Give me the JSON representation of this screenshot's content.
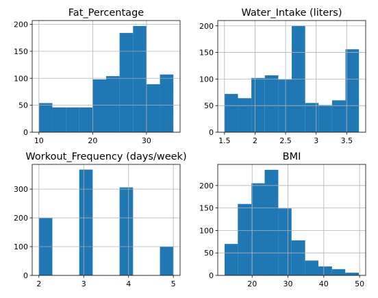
{
  "style": {
    "bar_color": "#1f77b4",
    "grid": true
  },
  "chart_data": [
    {
      "type": "bar",
      "title": "Fat_Percentage",
      "bins": [
        [
          10.0,
          12.5
        ],
        [
          12.5,
          15.0
        ],
        [
          15.0,
          17.5
        ],
        [
          17.5,
          20.0
        ],
        [
          20.0,
          22.5
        ],
        [
          22.5,
          25.0
        ],
        [
          25.0,
          27.5
        ],
        [
          27.5,
          30.0
        ],
        [
          30.0,
          32.5
        ],
        [
          32.5,
          35.0
        ]
      ],
      "values": [
        54,
        46,
        46,
        46,
        98,
        104,
        184,
        197,
        89,
        107
      ],
      "xlim": [
        8.75,
        36.25
      ],
      "ylim": [
        0,
        207
      ],
      "xticks": [
        10,
        20,
        30
      ],
      "yticks": [
        0,
        50,
        100,
        150,
        200
      ],
      "xlabel": "",
      "ylabel": ""
    },
    {
      "type": "bar",
      "title": "Water_Intake (liters)",
      "bins": [
        [
          1.5,
          1.72
        ],
        [
          1.72,
          1.94
        ],
        [
          1.94,
          2.16
        ],
        [
          2.16,
          2.38
        ],
        [
          2.38,
          2.6
        ],
        [
          2.6,
          2.82
        ],
        [
          2.82,
          3.04
        ],
        [
          3.04,
          3.26
        ],
        [
          3.26,
          3.48
        ],
        [
          3.48,
          3.7
        ]
      ],
      "values": [
        72,
        64,
        102,
        107,
        99,
        200,
        55,
        51,
        60,
        156
      ],
      "xlim": [
        1.39,
        3.81
      ],
      "ylim": [
        0,
        210
      ],
      "xticks": [
        1.5,
        2.0,
        2.5,
        3.0,
        3.5
      ],
      "yticks": [
        0,
        50,
        100,
        150,
        200
      ],
      "xlabel": "",
      "ylabel": ""
    },
    {
      "type": "bar",
      "title": "Workout_Frequency (days/week)",
      "bins": [
        [
          2.0,
          2.3
        ],
        [
          2.3,
          2.6
        ],
        [
          2.6,
          2.9
        ],
        [
          2.9,
          3.2
        ],
        [
          3.2,
          3.5
        ],
        [
          3.5,
          3.8
        ],
        [
          3.8,
          4.1
        ],
        [
          4.1,
          4.4
        ],
        [
          4.4,
          4.7
        ],
        [
          4.7,
          5.0
        ]
      ],
      "values": [
        199,
        0,
        0,
        368,
        0,
        0,
        306,
        0,
        0,
        100
      ],
      "xlim": [
        1.85,
        5.15
      ],
      "ylim": [
        0,
        386
      ],
      "xticks": [
        2,
        3,
        4,
        5
      ],
      "yticks": [
        0,
        100,
        200,
        300
      ],
      "xlabel": "",
      "ylabel": ""
    },
    {
      "type": "bar",
      "title": "BMI",
      "bins": [
        [
          12.3,
          16.0
        ],
        [
          16.0,
          19.8
        ],
        [
          19.8,
          23.5
        ],
        [
          23.5,
          27.3
        ],
        [
          27.3,
          31.0
        ],
        [
          31.0,
          34.8
        ],
        [
          34.8,
          38.5
        ],
        [
          38.5,
          42.3
        ],
        [
          42.3,
          46.0
        ],
        [
          46.0,
          49.8
        ]
      ],
      "values": [
        70,
        159,
        205,
        235,
        149,
        78,
        33,
        20,
        14,
        6
      ],
      "xlim": [
        10.4,
        51.7
      ],
      "ylim": [
        0,
        247
      ],
      "xticks": [
        20,
        30,
        40,
        50
      ],
      "yticks": [
        0,
        50,
        100,
        150,
        200
      ],
      "xlabel": "",
      "ylabel": ""
    }
  ]
}
